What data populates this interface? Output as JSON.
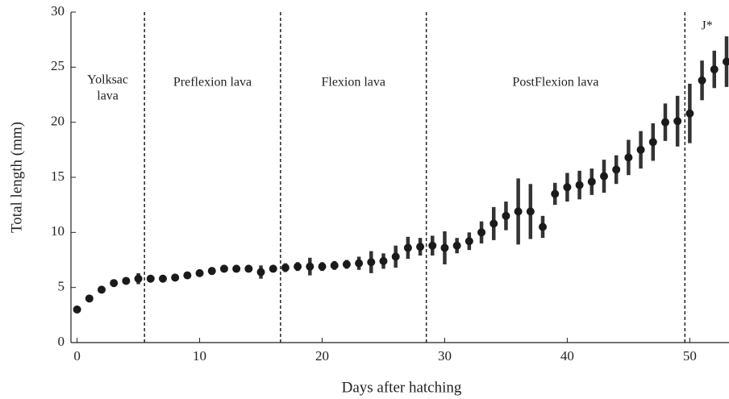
{
  "chart_data": {
    "type": "errorbar",
    "x_label": "Days after hatching",
    "y_label": "Total length (mm)",
    "x": [
      0,
      1,
      2,
      3,
      4,
      5,
      6,
      7,
      8,
      9,
      10,
      11,
      12,
      13,
      14,
      15,
      16,
      17,
      18,
      19,
      20,
      21,
      22,
      23,
      24,
      25,
      26,
      27,
      28,
      29,
      30,
      31,
      32,
      33,
      34,
      35,
      36,
      37,
      38,
      39,
      40,
      41,
      42,
      43,
      44,
      45,
      46,
      47,
      48,
      49,
      50,
      51,
      52,
      53
    ],
    "values": [
      3.0,
      4.0,
      4.8,
      5.4,
      5.6,
      5.8,
      5.8,
      5.8,
      5.9,
      6.1,
      6.3,
      6.5,
      6.7,
      6.7,
      6.7,
      6.4,
      6.7,
      6.8,
      6.9,
      6.9,
      6.9,
      7.0,
      7.1,
      7.2,
      7.3,
      7.4,
      7.8,
      8.6,
      8.7,
      8.8,
      8.6,
      8.8,
      9.2,
      10.0,
      10.8,
      11.5,
      11.9,
      11.9,
      10.5,
      13.5,
      14.1,
      14.3,
      14.6,
      15.1,
      15.7,
      16.8,
      17.5,
      18.2,
      20.0,
      20.1,
      20.8,
      23.8,
      24.8,
      25.5
    ],
    "errors": [
      0.2,
      0.2,
      0.2,
      0.3,
      0.3,
      0.5,
      0.3,
      0.3,
      0.3,
      0.3,
      0.3,
      0.3,
      0.3,
      0.3,
      0.3,
      0.6,
      0.3,
      0.4,
      0.4,
      0.8,
      0.4,
      0.4,
      0.4,
      0.6,
      1.0,
      0.7,
      1.0,
      1.0,
      0.8,
      0.9,
      1.5,
      0.7,
      0.8,
      1.0,
      1.5,
      1.3,
      3.0,
      2.5,
      1.0,
      1.0,
      1.3,
      1.3,
      1.2,
      1.5,
      1.3,
      1.6,
      1.7,
      1.7,
      1.7,
      2.3,
      2.7,
      1.8,
      1.7,
      2.3
    ],
    "color": "#1a1a1a",
    "error_color": "#333333",
    "xlim": [
      -0.5,
      53.2
    ],
    "ylim": [
      0,
      30
    ],
    "xticks": [
      0,
      10,
      20,
      30,
      40,
      50
    ],
    "yticks": [
      0,
      5,
      10,
      15,
      20,
      25,
      30
    ],
    "dividers": [
      5.5,
      16.6,
      28.5,
      49.6
    ],
    "stages": [
      [
        "Yolksac",
        "lava"
      ],
      [
        "Preflexion lava"
      ],
      [
        "Flexion lava"
      ],
      [
        "PostFlexion lava"
      ],
      [
        "J*"
      ]
    ]
  }
}
